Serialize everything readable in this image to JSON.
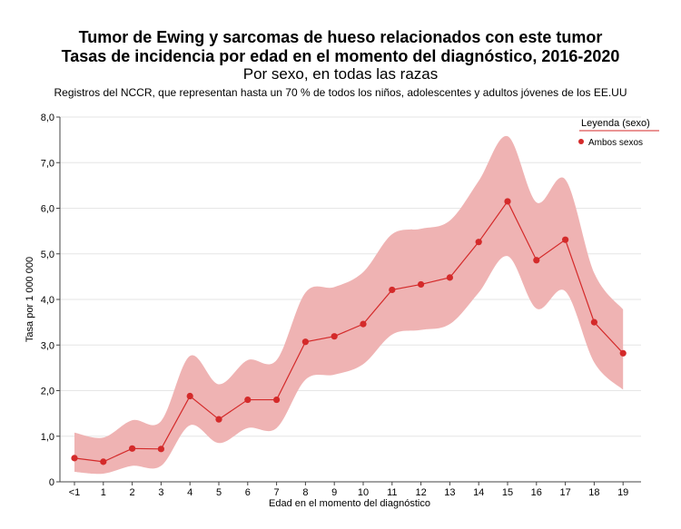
{
  "titles": {
    "title": "Tumor de Ewing y sarcomas de hueso relacionados con este tumor",
    "subtitle": "Tasas de incidencia por edad en el momento del diagnóstico, 2016-2020",
    "subtitle2": "Por sexo, en todas las razas",
    "note": "Registros del NCCR, que representan hasta un 70 % de todos los niños, adolescentes y adultos jóvenes de los EE.UU"
  },
  "colors": {
    "line": "#d42a2a",
    "band": "#efb3b3",
    "grid": "#e6e6e6",
    "axis": "#444444"
  },
  "chart_data": {
    "type": "line",
    "title": "Tumor de Ewing y sarcomas de hueso relacionados con este tumor",
    "xlabel": "Edad en el momento del diagnóstico",
    "ylabel": "Tasa por 1 000 000",
    "categories": [
      "<1",
      "1",
      "2",
      "3",
      "4",
      "5",
      "6",
      "7",
      "8",
      "9",
      "10",
      "11",
      "12",
      "13",
      "14",
      "15",
      "16",
      "17",
      "18",
      "19"
    ],
    "y_ticks": [
      "0",
      "1,0",
      "2,0",
      "3,0",
      "4,0",
      "5,0",
      "6,0",
      "7,0",
      "8,0"
    ],
    "ylim": [
      0,
      8
    ],
    "grid": true,
    "legend": {
      "title": "Leyenda (sexo)",
      "placement": "top-right"
    },
    "series": [
      {
        "name": "Ambos sexos",
        "values": [
          0.52,
          0.44,
          0.73,
          0.72,
          1.88,
          1.37,
          1.8,
          1.8,
          3.07,
          3.19,
          3.46,
          4.21,
          4.33,
          4.48,
          5.26,
          6.15,
          4.86,
          5.31,
          3.5,
          2.82
        ],
        "lower": [
          0.22,
          0.18,
          0.35,
          0.35,
          1.24,
          0.85,
          1.18,
          1.18,
          2.24,
          2.35,
          2.58,
          3.23,
          3.33,
          3.46,
          4.15,
          4.95,
          3.8,
          4.18,
          2.62,
          2.02
        ],
        "upper": [
          1.08,
          0.97,
          1.35,
          1.33,
          2.76,
          2.14,
          2.67,
          2.67,
          4.15,
          4.27,
          4.6,
          5.43,
          5.55,
          5.73,
          6.6,
          7.58,
          6.13,
          6.63,
          4.58,
          3.78
        ]
      }
    ]
  }
}
